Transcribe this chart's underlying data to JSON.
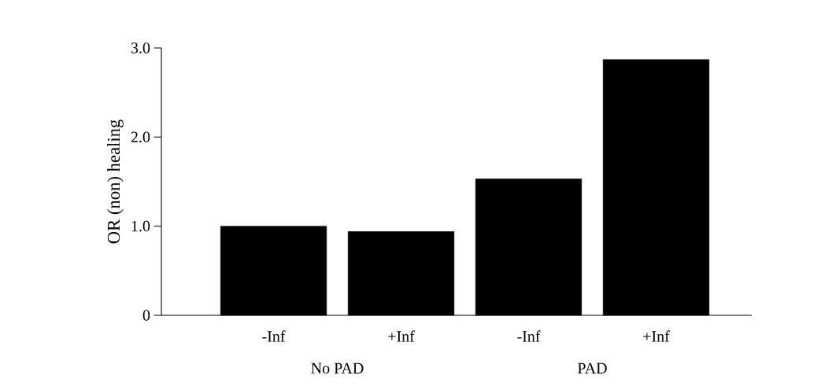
{
  "chart_data": {
    "type": "bar",
    "ylabel": "OR (non) healing",
    "categories": [
      "-Inf",
      "+Inf",
      "-Inf",
      "+Inf"
    ],
    "values": [
      1.0,
      0.94,
      1.53,
      2.87
    ],
    "color": "#000000",
    "ylim": [
      0,
      3.0
    ],
    "yticks": [
      0,
      {
        "value": 1,
        "label": "1.0"
      },
      {
        "value": 2,
        "label": "2.0"
      },
      {
        "value": 3,
        "label": "3.0"
      }
    ],
    "annotations": [
      "No PAD",
      "PAD"
    ]
  }
}
